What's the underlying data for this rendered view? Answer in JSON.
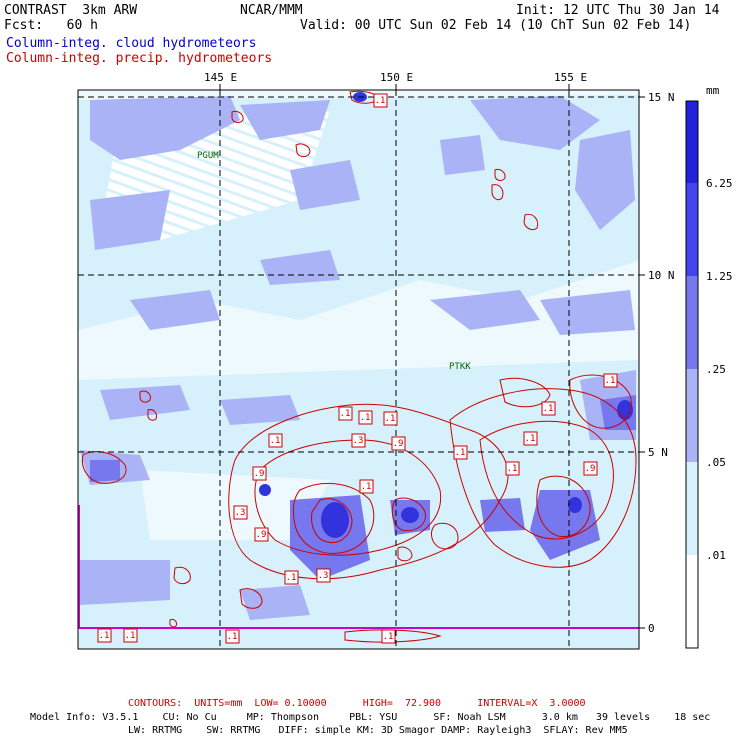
{
  "header": {
    "model": "CONTRAST  3km ARW",
    "forecast": "Fcst:   60 h",
    "center": "NCAR/MMM",
    "init": "Init: 12 UTC Thu 30 Jan 14",
    "valid": "Valid: 00 UTC Sun 02 Feb 14 (10 ChT Sun 02 Feb 14)",
    "field_blue": "Column-integ. cloud hydrometeors",
    "field_red": "Column-integ. precip. hydrometeors"
  },
  "map": {
    "lon_labels": [
      "145 E",
      "150 E",
      "155 E"
    ],
    "lat_labels": [
      "15 N",
      "10 N",
      "5 N",
      "0"
    ],
    "stations": [
      "PGUM",
      "PTKK"
    ],
    "contour_label_values": [
      ".1",
      ".3",
      ".9"
    ]
  },
  "colorbar": {
    "unit": "mm",
    "levels": [
      "6.25",
      "1.25",
      ".25",
      ".05",
      ".01"
    ],
    "colors": [
      "#2222dd",
      "#4444ee",
      "#7777ee",
      "#aab3f5",
      "#d6f1fb",
      "#ffffff"
    ]
  },
  "footer": {
    "contours": "CONTOURS:  UNITS=mm  LOW= 0.10000      HIGH=  72.900      INTERVAL=X  3.0000",
    "model_info_1": "Model Info: V3.5.1    CU: No Cu     MP: Thompson     PBL: YSU      SF: Noah LSM      3.0 km   39 levels    18 sec",
    "model_info_2": "LW: RRTMG    SW: RRTMG   DIFF: simple KM: 3D Smagor DAMP: Rayleigh3  SFLAY: Rev MM5"
  }
}
